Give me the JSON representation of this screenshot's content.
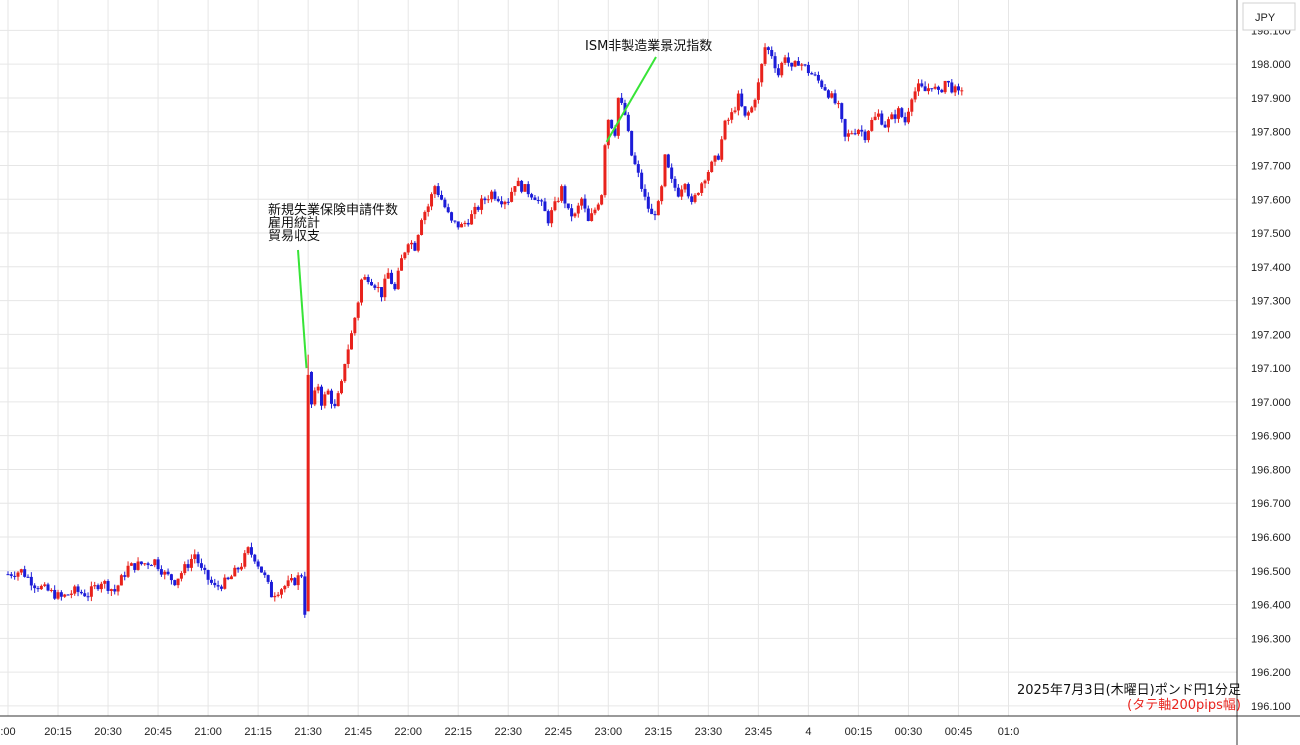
{
  "currency_label": "JPY",
  "caption": {
    "line1": "2025年7月3日(木曜日)ポンド円1分足",
    "line2": "(タテ軸200pips幅)",
    "line2_color": "#e8221c"
  },
  "colors": {
    "up": "#e8221c",
    "down": "#1c1cd8",
    "annotation_line": "#37e437",
    "grid": "#e6e6e6"
  },
  "chart_data": {
    "type": "candlestick",
    "ylim": [
      196.07,
      198.19
    ],
    "y_ticks": [
      "196.100",
      "196.200",
      "196.300",
      "196.400",
      "196.500",
      "196.600",
      "196.700",
      "196.800",
      "196.900",
      "197.000",
      "197.100",
      "197.200",
      "197.300",
      "197.400",
      "197.500",
      "197.600",
      "197.700",
      "197.800",
      "197.900",
      "198.000",
      "198.100"
    ],
    "x_ticks": [
      {
        "label": ":00",
        "minute": 0
      },
      {
        "label": "20:15",
        "minute": 15
      },
      {
        "label": "20:30",
        "minute": 30
      },
      {
        "label": "20:45",
        "minute": 45
      },
      {
        "label": "21:00",
        "minute": 60
      },
      {
        "label": "21:15",
        "minute": 75
      },
      {
        "label": "21:30",
        "minute": 90
      },
      {
        "label": "21:45",
        "minute": 105
      },
      {
        "label": "22:00",
        "minute": 120
      },
      {
        "label": "22:15",
        "minute": 135
      },
      {
        "label": "22:30",
        "minute": 150
      },
      {
        "label": "22:45",
        "minute": 165
      },
      {
        "label": "23:00",
        "minute": 180
      },
      {
        "label": "23:15",
        "minute": 195
      },
      {
        "label": "23:30",
        "minute": 210
      },
      {
        "label": "23:45",
        "minute": 225
      },
      {
        "label": "4",
        "minute": 240
      },
      {
        "label": "00:15",
        "minute": 255
      },
      {
        "label": "00:30",
        "minute": 270
      },
      {
        "label": "00:45",
        "minute": 285
      },
      {
        "label": "01:0",
        "minute": 300
      }
    ],
    "annotations": [
      {
        "lines": [
          "新規失業保険申請件数",
          "雇用統計",
          "貿易収支"
        ],
        "minute": 89.5,
        "price": 197.1
      },
      {
        "lines": [
          "ISM非製造業景況指数"
        ],
        "minute": 179.5,
        "price": 197.77
      }
    ],
    "waypoints": [
      [
        0,
        196.49
      ],
      [
        4,
        196.5
      ],
      [
        8,
        196.46
      ],
      [
        12,
        196.44
      ],
      [
        16,
        196.42
      ],
      [
        20,
        196.44
      ],
      [
        24,
        196.43
      ],
      [
        28,
        196.47
      ],
      [
        32,
        196.44
      ],
      [
        36,
        196.51
      ],
      [
        40,
        196.52
      ],
      [
        44,
        196.53
      ],
      [
        47,
        196.49
      ],
      [
        50,
        196.47
      ],
      [
        54,
        196.52
      ],
      [
        56,
        196.55
      ],
      [
        58,
        196.5
      ],
      [
        62,
        196.45
      ],
      [
        66,
        196.47
      ],
      [
        70,
        196.52
      ],
      [
        72,
        196.56
      ],
      [
        74,
        196.54
      ],
      [
        77,
        196.48
      ],
      [
        79,
        196.43
      ],
      [
        82,
        196.45
      ],
      [
        86,
        196.47
      ],
      [
        88,
        196.49
      ],
      [
        89,
        196.38
      ],
      [
        90,
        197.08
      ],
      [
        91,
        196.99
      ],
      [
        93,
        197.05
      ],
      [
        94,
        197.0
      ],
      [
        96,
        197.03
      ],
      [
        98,
        196.98
      ],
      [
        100,
        197.05
      ],
      [
        101,
        197.12
      ],
      [
        103,
        197.2
      ],
      [
        105,
        197.3
      ],
      [
        106,
        197.36
      ],
      [
        108,
        197.37
      ],
      [
        110,
        197.35
      ],
      [
        112,
        197.32
      ],
      [
        114,
        197.38
      ],
      [
        116,
        197.33
      ],
      [
        118,
        197.42
      ],
      [
        120,
        197.48
      ],
      [
        122,
        197.46
      ],
      [
        124,
        197.55
      ],
      [
        126,
        197.58
      ],
      [
        128,
        197.64
      ],
      [
        130,
        197.6
      ],
      [
        133,
        197.53
      ],
      [
        136,
        197.52
      ],
      [
        139,
        197.55
      ],
      [
        142,
        197.59
      ],
      [
        145,
        197.62
      ],
      [
        148,
        197.6
      ],
      [
        150,
        197.6
      ],
      [
        152,
        197.65
      ],
      [
        155,
        197.63
      ],
      [
        158,
        197.61
      ],
      [
        160,
        197.58
      ],
      [
        162,
        197.54
      ],
      [
        164,
        197.58
      ],
      [
        166,
        197.63
      ],
      [
        168,
        197.56
      ],
      [
        170,
        197.55
      ],
      [
        172,
        197.6
      ],
      [
        174,
        197.53
      ],
      [
        176,
        197.57
      ],
      [
        178,
        197.62
      ],
      [
        179,
        197.77
      ],
      [
        180,
        197.84
      ],
      [
        182,
        197.8
      ],
      [
        183,
        197.9
      ],
      [
        185,
        197.85
      ],
      [
        187,
        197.73
      ],
      [
        189,
        197.67
      ],
      [
        191,
        197.6
      ],
      [
        193,
        197.55
      ],
      [
        195,
        197.58
      ],
      [
        196,
        197.63
      ],
      [
        197,
        197.72
      ],
      [
        199,
        197.65
      ],
      [
        201,
        197.62
      ],
      [
        203,
        197.66
      ],
      [
        205,
        197.58
      ],
      [
        207,
        197.63
      ],
      [
        209,
        197.67
      ],
      [
        211,
        197.7
      ],
      [
        213,
        197.73
      ],
      [
        215,
        197.82
      ],
      [
        217,
        197.85
      ],
      [
        219,
        197.9
      ],
      [
        221,
        197.84
      ],
      [
        223,
        197.87
      ],
      [
        225,
        197.94
      ],
      [
        227,
        198.05
      ],
      [
        229,
        198.03
      ],
      [
        231,
        197.97
      ],
      [
        233,
        198.03
      ],
      [
        235,
        197.98
      ],
      [
        237,
        198.01
      ],
      [
        239,
        197.99
      ],
      [
        241,
        197.97
      ],
      [
        243,
        197.95
      ],
      [
        245,
        197.93
      ],
      [
        247,
        197.9
      ],
      [
        249,
        197.87
      ],
      [
        251,
        197.78
      ],
      [
        253,
        197.8
      ],
      [
        255,
        197.81
      ],
      [
        257,
        197.79
      ],
      [
        259,
        197.83
      ],
      [
        261,
        197.85
      ],
      [
        263,
        197.82
      ],
      [
        265,
        197.84
      ],
      [
        267,
        197.86
      ],
      [
        269,
        197.83
      ],
      [
        271,
        197.91
      ],
      [
        273,
        197.93
      ],
      [
        275,
        197.92
      ],
      [
        277,
        197.94
      ],
      [
        279,
        197.91
      ],
      [
        281,
        197.95
      ],
      [
        283,
        197.93
      ],
      [
        285,
        197.91
      ],
      [
        286,
        197.93
      ]
    ]
  }
}
